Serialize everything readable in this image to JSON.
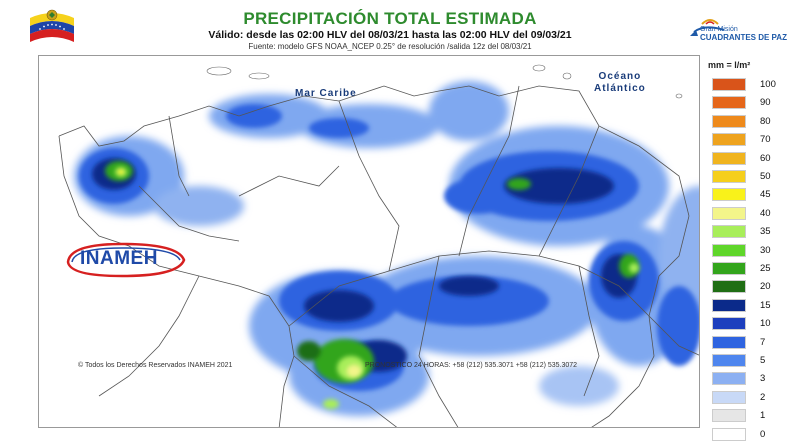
{
  "header": {
    "title": "PRECIPITACIÓN TOTAL ESTIMADA",
    "valid": "Válido: desde las 02:00 HLV del 08/03/21 hasta las 02:00 HLV del 09/03/21",
    "source": "Fuente: modelo GFS NOAA_NCEP 0.25° de resolución /salida 12z del 08/03/21",
    "partner_logo_line1": "Gran Misión",
    "partner_logo_line2": "CUADRANTES DE PAZ"
  },
  "map": {
    "label_sea": "Mar Caribe",
    "label_ocean_1": "Océano",
    "label_ocean_2": "Atlántico",
    "org_logo": "INAMEH"
  },
  "footer": {
    "copyright": "© Todos los Derechos Reservados INAMEH 2021",
    "forecast": "PRONOSTICO 24 HORAS: +58 (212) 535.3071 +58 (212) 535.3072"
  },
  "legend": {
    "unit": "mm = l/m²",
    "items": [
      {
        "label": "100",
        "color": "#d9541a"
      },
      {
        "label": "90",
        "color": "#e5661a"
      },
      {
        "label": "80",
        "color": "#ee8a1c"
      },
      {
        "label": "70",
        "color": "#eea31e"
      },
      {
        "label": "60",
        "color": "#f0b41e"
      },
      {
        "label": "50",
        "color": "#f5cf1c"
      },
      {
        "label": "45",
        "color": "#f9f21a"
      },
      {
        "label": "40",
        "color": "#f3f58a"
      },
      {
        "label": "35",
        "color": "#a8ee5a"
      },
      {
        "label": "30",
        "color": "#5fd62a"
      },
      {
        "label": "25",
        "color": "#33a51c"
      },
      {
        "label": "20",
        "color": "#1f6e14"
      },
      {
        "label": "15",
        "color": "#0b2a8a"
      },
      {
        "label": "10",
        "color": "#1d3fbe"
      },
      {
        "label": "7",
        "color": "#2f64e0"
      },
      {
        "label": "5",
        "color": "#4f86ee"
      },
      {
        "label": "3",
        "color": "#8cb0f2"
      },
      {
        "label": "2",
        "color": "#c8d9f7"
      },
      {
        "label": "1",
        "color": "#e6e6e6"
      },
      {
        "label": "0",
        "color": "#ffffff"
      }
    ]
  }
}
